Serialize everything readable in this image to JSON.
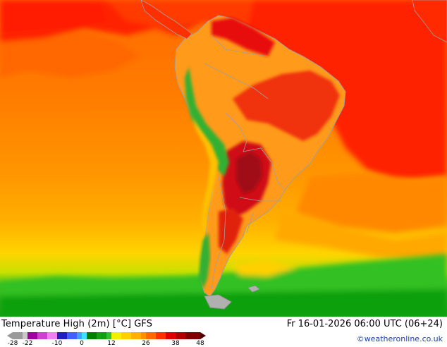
{
  "header": {
    "title": "Temperature High (2m) [°C] GFS",
    "datetime": "Fr 16-01-2026 06:00 UTC (06+24)",
    "credit": "©weatheronline.co.uk"
  },
  "legend": {
    "unit": "°C",
    "min": -28,
    "max": 48,
    "tick_labels": [
      "-28",
      "-22",
      "-10",
      "0",
      "12",
      "26",
      "38",
      "48"
    ],
    "tick_values": [
      -28,
      -22,
      -10,
      0,
      12,
      26,
      38,
      48
    ],
    "colors": [
      {
        "v": -28,
        "c": "#9a9a9a"
      },
      {
        "v": -24,
        "c": "#c8c8c8"
      },
      {
        "v": -22,
        "c": "#a000a0"
      },
      {
        "v": -18,
        "c": "#d040d0"
      },
      {
        "v": -14,
        "c": "#f080f0"
      },
      {
        "v": -10,
        "c": "#2020c0"
      },
      {
        "v": -6,
        "c": "#4060ff"
      },
      {
        "v": -2,
        "c": "#40a0ff"
      },
      {
        "v": 0,
        "c": "#40e0ff"
      },
      {
        "v": 2,
        "c": "#008000"
      },
      {
        "v": 6,
        "c": "#10a010"
      },
      {
        "v": 10,
        "c": "#30c030"
      },
      {
        "v": 12,
        "c": "#f0f000"
      },
      {
        "v": 16,
        "c": "#ffd000"
      },
      {
        "v": 20,
        "c": "#ffb000"
      },
      {
        "v": 24,
        "c": "#ff9000"
      },
      {
        "v": 26,
        "c": "#ff6a00"
      },
      {
        "v": 30,
        "c": "#ff3000"
      },
      {
        "v": 34,
        "c": "#e00000"
      },
      {
        "v": 38,
        "c": "#b00000"
      },
      {
        "v": 42,
        "c": "#800000"
      },
      {
        "v": 48,
        "c": "#500000"
      }
    ]
  },
  "map_colors": {
    "ocean_tropical": "#ff2a00",
    "ocean_warm": "#ff6a00",
    "ocean_mid": "#ff8c00",
    "ocean_cool": "#ffb000",
    "ocean_cold": "#ffd400",
    "southern_green": "#20c020",
    "land_base": "#ff9a1a",
    "land_hot": "#e81010",
    "land_veryhot": "#b00010",
    "andes_green": "#30b030",
    "border": "#a0a0a0"
  }
}
